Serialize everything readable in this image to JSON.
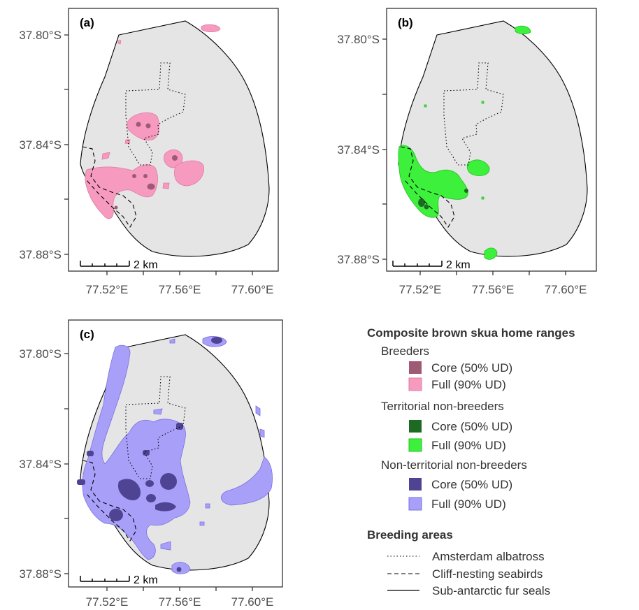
{
  "panels": [
    {
      "label": "(a)",
      "group": "breeders"
    },
    {
      "label": "(b)",
      "group": "territorial"
    },
    {
      "label": "(c)",
      "group": "nonterritorial"
    }
  ],
  "axes": {
    "y_ticks": [
      "37.80°S",
      "37.84°S",
      "37.88°S"
    ],
    "x_ticks": [
      "77.52°E",
      "77.56°E",
      "77.60°E"
    ]
  },
  "scale_bar": "2 km",
  "legend": {
    "title": "Composite brown skua home ranges",
    "groups": [
      {
        "name": "Breeders",
        "core_label": "Core (50% UD)",
        "full_label": "Full (90% UD)",
        "core_color": "#9e5a74",
        "full_color": "#f79ac0"
      },
      {
        "name": "Territorial non-breeders",
        "core_label": "Core (50% UD)",
        "full_label": "Full (90% UD)",
        "core_color": "#1d6a24",
        "full_color": "#3cf03c"
      },
      {
        "name": "Non-territorial non-breeders",
        "core_label": "Core (50% UD)",
        "full_label": "Full (90% UD)",
        "core_color": "#4f4494",
        "full_color": "#a8a0f8"
      }
    ],
    "breeding_title": "Breeding areas",
    "breeding_items": [
      {
        "label": "Amsterdam albatross",
        "line": "dotted"
      },
      {
        "label": "Cliff-nesting seabirds",
        "line": "dashed"
      },
      {
        "label": "Sub-antarctic fur seals",
        "line": "solid"
      }
    ]
  },
  "colors": {
    "island": "#e5e5e5",
    "frame": "#333333"
  }
}
